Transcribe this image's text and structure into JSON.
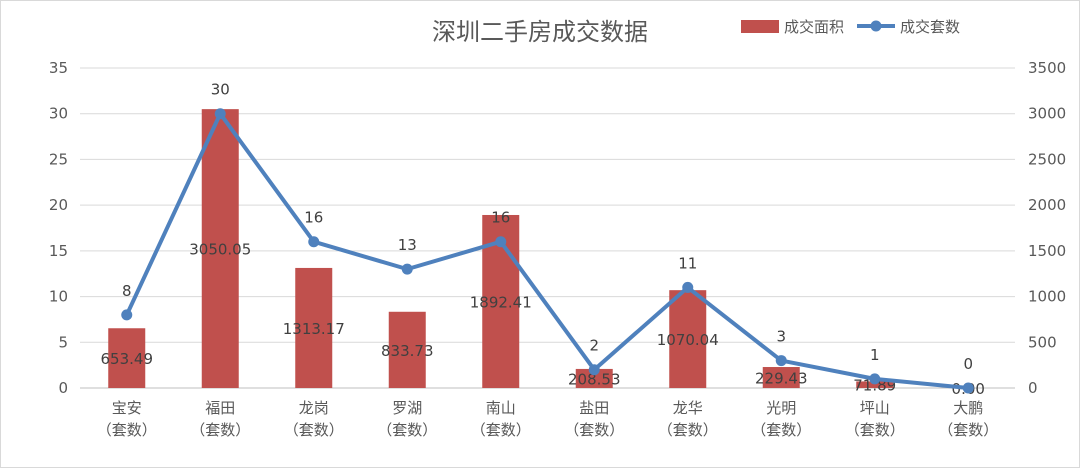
{
  "chart_data": {
    "type": "bar",
    "title": "深圳二手房成交数据",
    "categories": [
      "宝安",
      "福田",
      "龙岗",
      "罗湖",
      "南山",
      "盐田",
      "龙华",
      "光明",
      "坪山",
      "大鹏"
    ],
    "category_sublabel": "（套数）",
    "series": [
      {
        "name": "成交面积",
        "type": "bar",
        "axis": "right",
        "color": "#c0504d",
        "values": [
          653.49,
          3050.05,
          1313.17,
          833.73,
          1892.41,
          208.53,
          1070.04,
          229.43,
          71.89,
          0.0
        ],
        "value_labels": [
          "653.49",
          "3050.05",
          "1313.17",
          "833.73",
          "1892.41",
          "208.53",
          "1070.04",
          "229.43",
          "71.89",
          "0.00"
        ]
      },
      {
        "name": "成交套数",
        "type": "line",
        "axis": "left",
        "color": "#4f81bd",
        "values": [
          8,
          30,
          16,
          13,
          16,
          2,
          11,
          3,
          1,
          0
        ],
        "value_labels": [
          "8",
          "30",
          "16",
          "13",
          "16",
          "2",
          "11",
          "3",
          "1",
          "0"
        ]
      }
    ],
    "y_left": {
      "min": 0,
      "max": 35,
      "step": 5,
      "ticks": [
        "0",
        "5",
        "10",
        "15",
        "20",
        "25",
        "30",
        "35"
      ]
    },
    "y_right": {
      "min": 0,
      "max": 3500,
      "step": 500,
      "ticks": [
        "0",
        "500",
        "1000",
        "1500",
        "2000",
        "2500",
        "3000",
        "3500"
      ]
    },
    "grid": true,
    "legend_position": "top-right"
  }
}
